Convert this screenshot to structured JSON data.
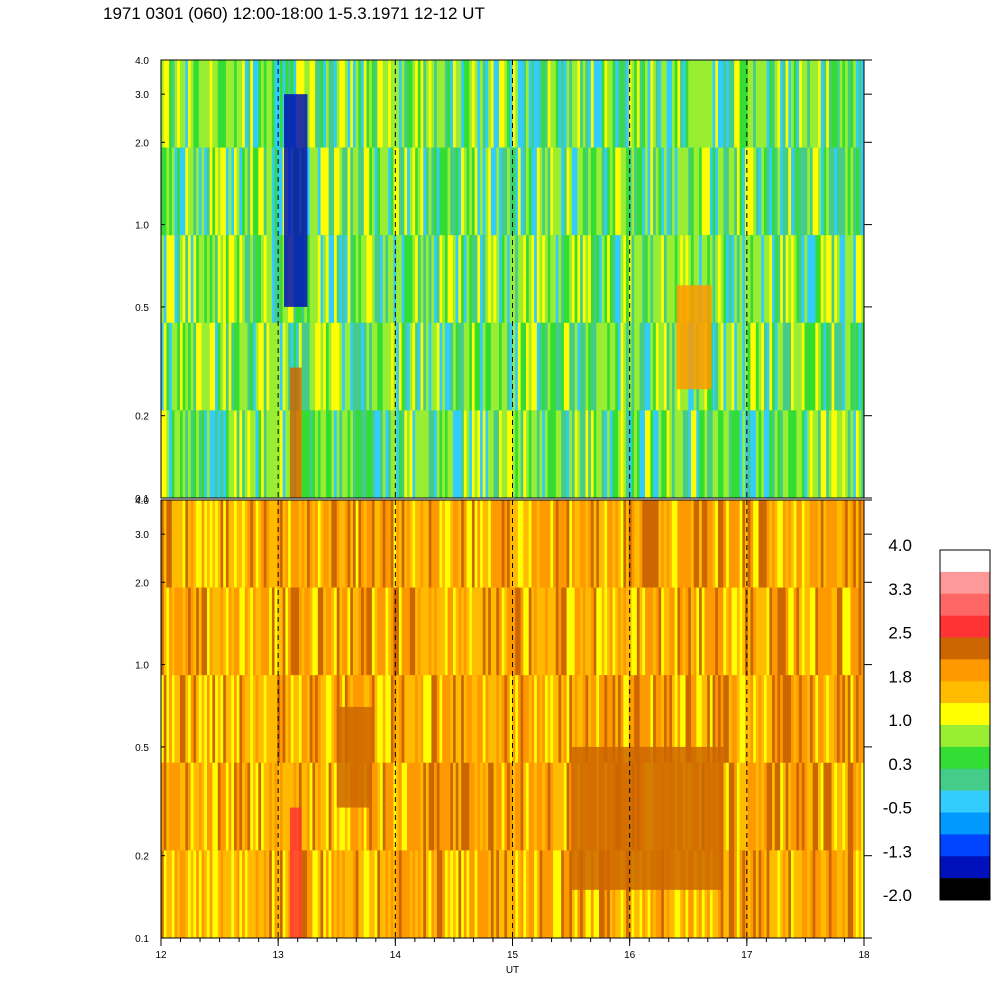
{
  "title": "1971 0301 (060) 12:00-18:00 1-5.3.1971  12-12 UT",
  "chart_data": {
    "type": "heatmap",
    "x_label": "UT",
    "x_range": [
      12,
      18
    ],
    "x_ticks": [
      "12",
      "13",
      "14",
      "15",
      "16",
      "17",
      "18"
    ],
    "dashed_hour_lines": [
      13,
      14,
      15,
      16,
      17
    ],
    "panels": [
      {
        "id": "upper",
        "y_scale": "log",
        "y_range": [
          0.1,
          4.0
        ],
        "y_ticks": [
          {
            "value": 0.1,
            "label": "0.1"
          },
          {
            "value": 0.2,
            "label": "0.2"
          },
          {
            "value": 0.5,
            "label": "0.5"
          },
          {
            "value": 1.0,
            "label": "1.0"
          },
          {
            "value": 2.0,
            "label": "2.0"
          },
          {
            "value": 3.0,
            "label": "3.0"
          },
          {
            "value": 4.0,
            "label": "4.0"
          }
        ],
        "dominant_level": "0.3 to 1.0 (green-yellow)",
        "features": [
          {
            "x_range": [
              13.05,
              13.25
            ],
            "y_range": [
              0.5,
              3.0
            ],
            "level": -1.5,
            "note": "deep blue vertical band"
          },
          {
            "x_range": [
              13.1,
              13.2
            ],
            "y_range": [
              0.1,
              0.3
            ],
            "level": 2.0,
            "note": "orange column"
          },
          {
            "x_range": [
              16.4,
              16.7
            ],
            "y_range": [
              0.25,
              0.6
            ],
            "level": 1.8,
            "note": "orange patch"
          }
        ]
      },
      {
        "id": "lower",
        "y_scale": "log",
        "y_range": [
          0.1,
          4.0
        ],
        "y_ticks": [
          {
            "value": 0.1,
            "label": "0.1"
          },
          {
            "value": 0.2,
            "label": "0.2"
          },
          {
            "value": 0.5,
            "label": "0.5"
          },
          {
            "value": 1.0,
            "label": "1.0"
          },
          {
            "value": 2.0,
            "label": "2.0"
          },
          {
            "value": 3.0,
            "label": "3.0"
          },
          {
            "value": 4.0,
            "label": "4.0"
          }
        ],
        "dominant_level": "1.0 to 2.0 (yellow-orange)",
        "features": [
          {
            "x_range": [
              13.1,
              13.2
            ],
            "y_range": [
              0.1,
              0.3
            ],
            "level": 2.8,
            "note": "red column"
          },
          {
            "x_range": [
              15.5,
              16.8
            ],
            "y_range": [
              0.15,
              0.5
            ],
            "level": 2.3,
            "note": "dark orange patches"
          },
          {
            "x_range": [
              13.5,
              13.8
            ],
            "y_range": [
              0.3,
              0.7
            ],
            "level": 2.2,
            "note": "dark orange patch"
          }
        ]
      }
    ],
    "colorbar": {
      "labels": [
        "4.0",
        "3.3",
        "2.5",
        "1.8",
        "1.0",
        "0.3",
        "-0.5",
        "-1.3",
        "-2.0"
      ],
      "colors_top_to_bottom": [
        "#ffffff",
        "#ff9999",
        "#ff6666",
        "#ff3333",
        "#cc6600",
        "#ff9900",
        "#ffbb00",
        "#ffff00",
        "#99ee33",
        "#33dd33",
        "#44cc88",
        "#33ccff",
        "#0099ff",
        "#0044ff",
        "#0011bb",
        "#000000"
      ]
    }
  }
}
